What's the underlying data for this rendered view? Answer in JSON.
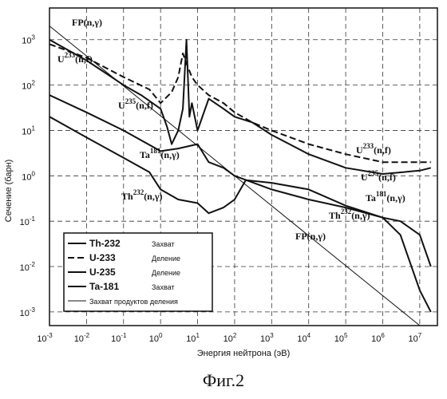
{
  "chart_data": {
    "type": "line",
    "xlabel": "Энергия нейтрона (эВ)",
    "ylabel": "Сечение (барн)",
    "xscale": "log",
    "yscale": "log",
    "xlim": [
      0.001,
      30000000
    ],
    "ylim": [
      0.0005,
      5000
    ],
    "grid": true,
    "x_ticks": [
      {
        "base": "10",
        "exp": "-3"
      },
      {
        "base": "10",
        "exp": "-2"
      },
      {
        "base": "10",
        "exp": "-1"
      },
      {
        "base": "10",
        "exp": "0"
      },
      {
        "base": "10",
        "exp": "1"
      },
      {
        "base": "10",
        "exp": "2"
      },
      {
        "base": "10",
        "exp": "3"
      },
      {
        "base": "10",
        "exp": "4"
      },
      {
        "base": "10",
        "exp": "5"
      },
      {
        "base": "10",
        "exp": "6"
      },
      {
        "base": "10",
        "exp": "7"
      }
    ],
    "y_ticks": [
      {
        "base": "10",
        "exp": "3"
      },
      {
        "base": "10",
        "exp": "2"
      },
      {
        "base": "10",
        "exp": "1"
      },
      {
        "base": "10",
        "exp": "0"
      },
      {
        "base": "10",
        "exp": "-1"
      },
      {
        "base": "10",
        "exp": "-2"
      },
      {
        "base": "10",
        "exp": "-3"
      }
    ],
    "series": [
      {
        "name": "Th-232",
        "legend_note": "Захват",
        "style": "solid",
        "points": [
          [
            0.001,
            20
          ],
          [
            0.01,
            7
          ],
          [
            0.1,
            2.5
          ],
          [
            0.5,
            1.2
          ],
          [
            1,
            0.5
          ],
          [
            3,
            0.3
          ],
          [
            10,
            0.25
          ],
          [
            20,
            0.15
          ],
          [
            50,
            0.2
          ],
          [
            100,
            0.3
          ],
          [
            200,
            0.8
          ],
          [
            1000,
            0.7
          ],
          [
            10000,
            0.5
          ],
          [
            100000,
            0.22
          ],
          [
            1000000,
            0.12
          ],
          [
            3000000,
            0.05
          ],
          [
            10000000,
            0.003
          ],
          [
            20000000,
            0.001
          ]
        ]
      },
      {
        "name": "U-233",
        "legend_note": "Деление",
        "style": "dashed",
        "points": [
          [
            0.001,
            800
          ],
          [
            0.01,
            400
          ],
          [
            0.1,
            150
          ],
          [
            0.5,
            80
          ],
          [
            1,
            40
          ],
          [
            2,
            70
          ],
          [
            3,
            150
          ],
          [
            4,
            500
          ],
          [
            5,
            300
          ],
          [
            7,
            150
          ],
          [
            10,
            100
          ],
          [
            20,
            60
          ],
          [
            50,
            40
          ],
          [
            100,
            25
          ],
          [
            300,
            15
          ],
          [
            1000,
            10
          ],
          [
            10000,
            5
          ],
          [
            100000,
            3
          ],
          [
            1000000,
            2
          ],
          [
            10000000,
            2
          ],
          [
            20000000,
            2
          ]
        ]
      },
      {
        "name": "U-235",
        "legend_note": "Деление",
        "style": "solid",
        "points": [
          [
            0.001,
            1000
          ],
          [
            0.01,
            350
          ],
          [
            0.1,
            100
          ],
          [
            0.3,
            60
          ],
          [
            1,
            30
          ],
          [
            1.5,
            12
          ],
          [
            2,
            5
          ],
          [
            3,
            10
          ],
          [
            4,
            30
          ],
          [
            5,
            1000
          ],
          [
            6,
            20
          ],
          [
            7,
            40
          ],
          [
            10,
            10
          ],
          [
            20,
            50
          ],
          [
            50,
            30
          ],
          [
            100,
            20
          ],
          [
            300,
            15
          ],
          [
            1000,
            8
          ],
          [
            10000,
            3
          ],
          [
            100000,
            1.5
          ],
          [
            1000000,
            1.1
          ],
          [
            10000000,
            1.3
          ],
          [
            20000000,
            1.5
          ]
        ]
      },
      {
        "name": "Ta-181",
        "legend_note": "Захват",
        "style": "solid",
        "points": [
          [
            0.001,
            60
          ],
          [
            0.01,
            25
          ],
          [
            0.1,
            10
          ],
          [
            1,
            3.5
          ],
          [
            3,
            4
          ],
          [
            10,
            5
          ],
          [
            20,
            2
          ],
          [
            50,
            1.5
          ],
          [
            100,
            1
          ],
          [
            1000,
            0.5
          ],
          [
            10000,
            0.3
          ],
          [
            100000,
            0.2
          ],
          [
            1000000,
            0.12
          ],
          [
            3000000,
            0.1
          ],
          [
            10000000,
            0.05
          ],
          [
            20000000,
            0.01
          ]
        ]
      },
      {
        "name": "Захват продуктов деления",
        "legend_note": "",
        "style": "thin",
        "points": [
          [
            0.001,
            2000
          ],
          [
            10000000,
            0.0005
          ]
        ]
      }
    ],
    "annotations": [
      {
        "main": "FP(n,γ)",
        "sup": ""
      },
      {
        "main": "U",
        "sup": "233",
        "tail": "(n,f)"
      },
      {
        "main": "U",
        "sup": "235",
        "tail": "(n,f)"
      },
      {
        "main": "Ta",
        "sup": "181",
        "tail": "(n,γ)"
      },
      {
        "main": "Th",
        "sup": "232",
        "tail": "(n,γ)"
      },
      {
        "main": "U",
        "sup": "233",
        "tail": "(n,f)"
      },
      {
        "main": "U",
        "sup": "235",
        "tail": "(n,f)"
      },
      {
        "main": "Ta",
        "sup": "181",
        "tail": "(n,γ)"
      },
      {
        "main": "Th",
        "sup": "232",
        "tail": "(n,γ)"
      },
      {
        "main": "FP(n,γ)",
        "sup": ""
      }
    ]
  },
  "caption": "Фиг.2"
}
